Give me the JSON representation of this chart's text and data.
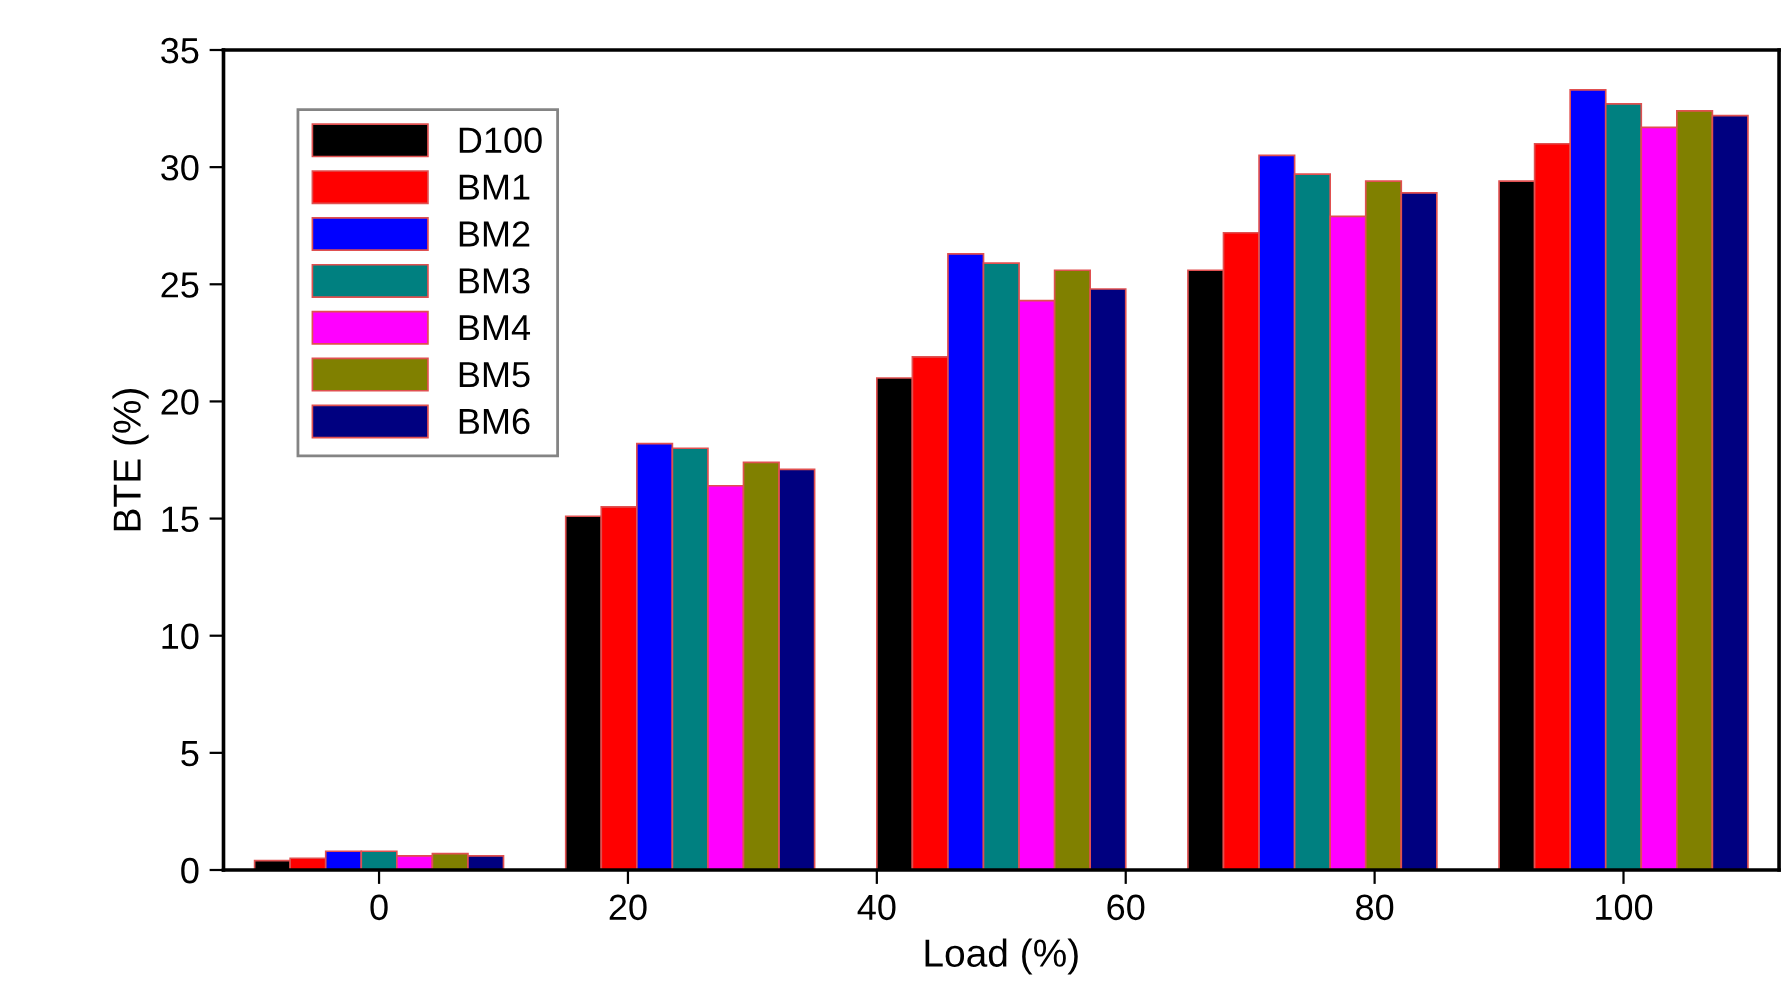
{
  "chart_data": {
    "type": "bar",
    "xlabel": "Load (%)",
    "ylabel": "BTE (%)",
    "x": [
      0,
      25,
      50,
      75,
      100
    ],
    "xlim": [
      -12.5,
      112.5
    ],
    "xticks": [
      0,
      20,
      40,
      60,
      80,
      100
    ],
    "ylim": [
      0,
      35
    ],
    "yticks": [
      0,
      5,
      10,
      15,
      20,
      25,
      30,
      35
    ],
    "legend": "top left",
    "grid": false,
    "series": [
      {
        "name": "D100",
        "color": "#000000",
        "values": [
          0.4,
          15.1,
          21.0,
          25.6,
          29.4
        ]
      },
      {
        "name": "BM1",
        "color": "#ff0000",
        "values": [
          0.5,
          15.5,
          21.9,
          27.2,
          31.0
        ]
      },
      {
        "name": "BM2",
        "color": "#0000ff",
        "values": [
          0.8,
          18.2,
          26.3,
          30.5,
          33.3
        ]
      },
      {
        "name": "BM3",
        "color": "#008080",
        "values": [
          0.8,
          18.0,
          25.9,
          29.7,
          32.7
        ]
      },
      {
        "name": "BM4",
        "color": "#ff00ff",
        "values": [
          0.6,
          16.4,
          24.3,
          27.9,
          31.7
        ]
      },
      {
        "name": "BM5",
        "color": "#808000",
        "values": [
          0.7,
          17.4,
          25.6,
          29.4,
          32.4
        ]
      },
      {
        "name": "BM6",
        "color": "#000080",
        "values": [
          0.6,
          17.1,
          24.8,
          28.9,
          32.2
        ]
      }
    ]
  }
}
